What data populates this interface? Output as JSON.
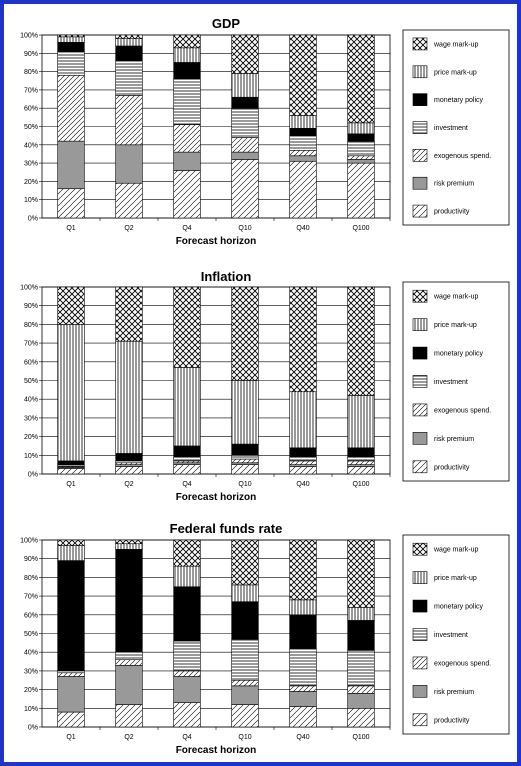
{
  "colors": {
    "border": "#1f35c9"
  },
  "legend_entries": [
    "wage mark-up",
    "price mark-up",
    "monetary policy",
    "investment",
    "exogenous spend.",
    "risk premium",
    "productivity"
  ],
  "chart_data": [
    {
      "type": "bar",
      "stacked": true,
      "title": "GDP",
      "xlabel": "Forecast horizon",
      "ylabel": "",
      "ylim": [
        0,
        100
      ],
      "y_ticks": [
        "0%",
        "10%",
        "20%",
        "30%",
        "40%",
        "50%",
        "60%",
        "70%",
        "80%",
        "90%",
        "100%"
      ],
      "categories": [
        "Q1",
        "Q2",
        "Q4",
        "Q10",
        "Q40",
        "Q100"
      ],
      "legend_position": "right",
      "series": [
        {
          "name": "productivity",
          "values": [
            16,
            19,
            26,
            32,
            31,
            30
          ]
        },
        {
          "name": "risk premium",
          "values": [
            26,
            21,
            10,
            4,
            3,
            2
          ]
        },
        {
          "name": "exogenous spend.",
          "values": [
            36,
            27,
            15,
            8,
            3,
            2
          ]
        },
        {
          "name": "investment",
          "values": [
            13,
            19,
            25,
            16,
            8,
            8
          ]
        },
        {
          "name": "monetary policy",
          "values": [
            5,
            8,
            9,
            6,
            4,
            4
          ]
        },
        {
          "name": "price mark-up",
          "values": [
            3,
            4,
            8,
            13,
            7,
            6
          ]
        },
        {
          "name": "wage mark-up",
          "values": [
            1,
            2,
            7,
            21,
            44,
            48
          ]
        }
      ]
    },
    {
      "type": "bar",
      "stacked": true,
      "title": "Inflation",
      "xlabel": "Forecast horizon",
      "ylabel": "",
      "ylim": [
        0,
        100
      ],
      "y_ticks": [
        "0%",
        "10%",
        "20%",
        "30%",
        "40%",
        "50%",
        "60%",
        "70%",
        "80%",
        "90%",
        "100%"
      ],
      "categories": [
        "Q1",
        "Q2",
        "Q4",
        "Q10",
        "Q40",
        "Q100"
      ],
      "legend_position": "right",
      "series": [
        {
          "name": "productivity",
          "values": [
            3,
            4,
            5,
            5,
            4,
            4
          ]
        },
        {
          "name": "risk premium",
          "values": [
            0.5,
            1,
            1,
            1,
            1,
            1
          ]
        },
        {
          "name": "exogenous spend.",
          "values": [
            0.5,
            1,
            1,
            2,
            2,
            2
          ]
        },
        {
          "name": "investment",
          "values": [
            1,
            1,
            2,
            2,
            2,
            2
          ]
        },
        {
          "name": "monetary policy",
          "values": [
            2,
            4,
            6,
            6,
            5,
            5
          ]
        },
        {
          "name": "price mark-up",
          "values": [
            73,
            60,
            42,
            34,
            30,
            28
          ]
        },
        {
          "name": "wage mark-up",
          "values": [
            20,
            29,
            43,
            50,
            56,
            58
          ]
        }
      ]
    },
    {
      "type": "bar",
      "stacked": true,
      "title": "Federal funds rate",
      "xlabel": "Forecast horizon",
      "ylabel": "",
      "ylim": [
        0,
        100
      ],
      "y_ticks": [
        "0%",
        "10%",
        "20%",
        "30%",
        "40%",
        "50%",
        "60%",
        "70%",
        "80%",
        "90%",
        "100%"
      ],
      "categories": [
        "Q1",
        "Q2",
        "Q4",
        "Q10",
        "Q40",
        "Q100"
      ],
      "legend_position": "right",
      "series": [
        {
          "name": "productivity",
          "values": [
            8,
            12,
            13,
            12,
            11,
            10
          ]
        },
        {
          "name": "risk premium",
          "values": [
            19,
            21,
            14,
            10,
            8,
            8
          ]
        },
        {
          "name": "exogenous spend.",
          "values": [
            2,
            3,
            3,
            3,
            3,
            4
          ]
        },
        {
          "name": "investment",
          "values": [
            1,
            4,
            16,
            22,
            20,
            19
          ]
        },
        {
          "name": "monetary policy",
          "values": [
            59,
            55,
            29,
            20,
            18,
            16
          ]
        },
        {
          "name": "price mark-up",
          "values": [
            8,
            3,
            11,
            9,
            8,
            7
          ]
        },
        {
          "name": "wage mark-up",
          "values": [
            3,
            2,
            14,
            24,
            32,
            36
          ]
        }
      ]
    }
  ]
}
